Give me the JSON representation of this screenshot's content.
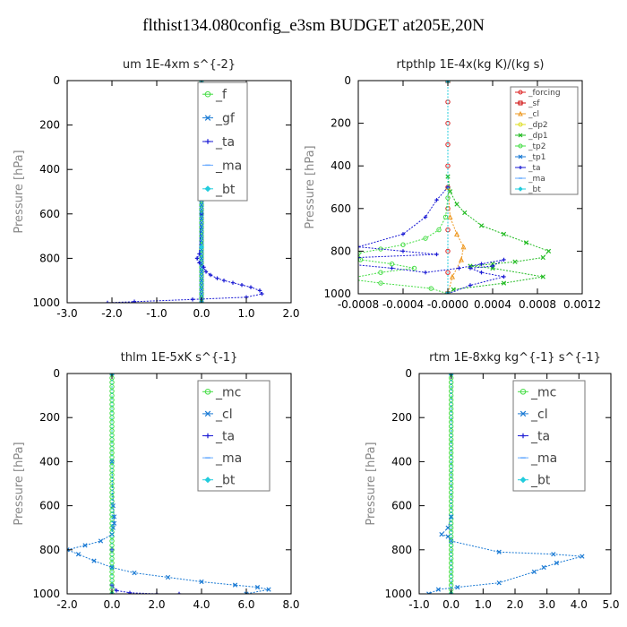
{
  "title": "flthist134.080config_e3sm  BUDGET at205E,20N",
  "chart_data": [
    {
      "type": "line",
      "title": "um  1E-4xm s^{-2}",
      "ylabel": "Pressure [hPa]",
      "xlim": [
        -3.0,
        2.0
      ],
      "ylim": [
        1000,
        0
      ],
      "xticks": [
        "-3.0",
        "-2.0",
        "-1.0",
        "0.0",
        "1.0",
        "2.0"
      ],
      "yticks": [
        "0",
        "200",
        "400",
        "600",
        "800",
        "1000"
      ],
      "legend_position": "top-right",
      "series": [
        {
          "name": "_f",
          "color": "#44dd44",
          "marker": "circle",
          "x": [
            0,
            0,
            0,
            0,
            0,
            0,
            0,
            0,
            0,
            0,
            0,
            0,
            0,
            0,
            0,
            0,
            0,
            0,
            0,
            0,
            0,
            0,
            0,
            0,
            0,
            0,
            0,
            0,
            0,
            0,
            0,
            0,
            0,
            0,
            0,
            0,
            0,
            0,
            0,
            0,
            0,
            0,
            0,
            0,
            0,
            0,
            0,
            0,
            0,
            0,
            0
          ],
          "y": [
            0,
            20,
            40,
            60,
            80,
            100,
            120,
            140,
            160,
            180,
            200,
            220,
            240,
            260,
            280,
            300,
            320,
            340,
            360,
            380,
            400,
            420,
            440,
            460,
            480,
            500,
            520,
            540,
            560,
            580,
            600,
            620,
            640,
            660,
            680,
            700,
            720,
            740,
            760,
            780,
            800,
            820,
            840,
            860,
            880,
            900,
            920,
            940,
            960,
            980,
            1000
          ]
        },
        {
          "name": "_gf",
          "color": "#1a7ad4",
          "marker": "x",
          "x": [
            0,
            0,
            0,
            0,
            0,
            0,
            0,
            0,
            0,
            0,
            0,
            0,
            0,
            0,
            0,
            0,
            0,
            0,
            0,
            0,
            0,
            0,
            0,
            0,
            0,
            0,
            0,
            0,
            0,
            0,
            0,
            0,
            0,
            0,
            0,
            0,
            0,
            0,
            0,
            0,
            0,
            0,
            0,
            0,
            0,
            0,
            0,
            0,
            0,
            0,
            0
          ],
          "y": [
            0,
            20,
            40,
            60,
            80,
            100,
            120,
            140,
            160,
            180,
            200,
            220,
            240,
            260,
            280,
            300,
            320,
            340,
            360,
            380,
            400,
            420,
            440,
            460,
            480,
            500,
            520,
            540,
            560,
            580,
            600,
            620,
            640,
            660,
            680,
            700,
            720,
            740,
            760,
            780,
            800,
            820,
            840,
            860,
            880,
            900,
            920,
            940,
            960,
            980,
            1000
          ]
        },
        {
          "name": "_ta",
          "color": "#1a1ad4",
          "marker": "plus",
          "x": [
            0,
            0,
            0,
            -0.05,
            -0.1,
            -0.05,
            0.05,
            0.1,
            0.2,
            0.35,
            0.5,
            0.7,
            0.9,
            1.1,
            1.3,
            1.35,
            1.0,
            -0.2,
            -1.5,
            -2.1
          ],
          "y": [
            0,
            200,
            600,
            780,
            800,
            820,
            840,
            860,
            875,
            890,
            900,
            910,
            920,
            930,
            945,
            960,
            975,
            985,
            995,
            1000
          ]
        },
        {
          "name": "_ma",
          "color": "#66aaff",
          "marker": "dash",
          "x": [
            0,
            0
          ],
          "y": [
            0,
            1000
          ]
        },
        {
          "name": "_bt",
          "color": "#22ccdd",
          "marker": "diamond",
          "x": [
            0,
            0,
            0,
            0,
            0
          ],
          "y": [
            0,
            250,
            500,
            750,
            1000
          ]
        }
      ]
    },
    {
      "type": "line",
      "title": "rtpthlp  1E-4x(kg K)/(kg s)",
      "ylabel": "Pressure [hPa]",
      "xlim": [
        -0.0008,
        0.0012
      ],
      "ylim": [
        1000,
        0
      ],
      "xticks": [
        "-0.0008",
        "-0.0004",
        "-0.0000",
        "0.0004",
        "0.0008",
        "0.0012"
      ],
      "yticks": [
        "0",
        "200",
        "400",
        "600",
        "800",
        "1000"
      ],
      "legend_position": "top-right",
      "series": [
        {
          "name": "_forcing",
          "color": "#dd2222",
          "marker": "circle",
          "x": [
            0,
            0,
            0,
            0,
            0,
            0,
            0,
            0,
            0,
            0,
            0
          ],
          "y": [
            0,
            100,
            200,
            300,
            400,
            500,
            600,
            700,
            800,
            900,
            1000
          ]
        },
        {
          "name": "_sf",
          "color": "#cc0000",
          "marker": "square",
          "x": [
            0,
            0
          ],
          "y": [
            0,
            1000
          ]
        },
        {
          "name": "_cl",
          "color": "#ee9922",
          "marker": "triangle",
          "x": [
            0,
            2e-05,
            8e-05,
            0.00014,
            0.00012,
            4e-05,
            0
          ],
          "y": [
            500,
            640,
            720,
            780,
            840,
            920,
            1000
          ]
        },
        {
          "name": "_dp2",
          "color": "#dddd22",
          "marker": "circle",
          "x": [
            0,
            0
          ],
          "y": [
            0,
            1000
          ]
        },
        {
          "name": "_dp1",
          "color": "#22bb22",
          "marker": "x",
          "x": [
            0,
            0,
            2e-05,
            8e-05,
            0.00015,
            0.0003,
            0.0005,
            0.0007,
            0.0009,
            0.00085,
            0.0006,
            0.0004,
            0.0002,
            0.0004,
            0.00085,
            0.0005,
            5e-05,
            0
          ],
          "y": [
            0,
            450,
            520,
            580,
            620,
            680,
            720,
            760,
            800,
            830,
            850,
            860,
            870,
            880,
            920,
            950,
            980,
            1000
          ]
        },
        {
          "name": "_tp2",
          "color": "#44dd44",
          "marker": "circle",
          "x": [
            0,
            0,
            -2e-05,
            -8e-05,
            -0.0002,
            -0.0004,
            -0.0006,
            -0.0008,
            -0.00078,
            -0.0005,
            -0.0003,
            -0.0006,
            -0.0009,
            -0.0006,
            -0.00015,
            0
          ],
          "y": [
            0,
            550,
            640,
            700,
            740,
            770,
            790,
            810,
            840,
            860,
            880,
            900,
            930,
            950,
            975,
            1000
          ]
        },
        {
          "name": "_tp1",
          "color": "#1a7ad4",
          "marker": "x",
          "x": [
            0,
            0
          ],
          "y": [
            0,
            1000
          ]
        },
        {
          "name": "_ta",
          "color": "#1a1ad4",
          "marker": "plus",
          "x": [
            0,
            0,
            -0.0001,
            -0.0002,
            -0.0004,
            -0.0008,
            -0.0004,
            -0.0001,
            -0.0008,
            -0.0009,
            -0.0005,
            -0.0002,
            0.0001,
            0.0003,
            0.0005,
            0.0004,
            0.0002,
            0.0003,
            0.0005,
            0.0002,
            0
          ],
          "y": [
            0,
            500,
            560,
            640,
            720,
            780,
            800,
            815,
            830,
            860,
            880,
            900,
            880,
            860,
            840,
            870,
            880,
            900,
            920,
            960,
            1000
          ]
        },
        {
          "name": "_ma",
          "color": "#66aaff",
          "marker": "dash",
          "x": [
            0,
            0
          ],
          "y": [
            0,
            1000
          ]
        },
        {
          "name": "_bt",
          "color": "#22ccdd",
          "marker": "diamond",
          "x": [
            0,
            0
          ],
          "y": [
            0,
            1000
          ]
        }
      ]
    },
    {
      "type": "line",
      "title": "thlm  1E-5xK s^{-1}",
      "ylabel": "Pressure [hPa]",
      "xlim": [
        -2.0,
        8.0
      ],
      "ylim": [
        1000,
        0
      ],
      "xticks": [
        "-2.0",
        "0.0",
        "2.0",
        "4.0",
        "6.0",
        "8.0"
      ],
      "yticks": [
        "0",
        "200",
        "400",
        "600",
        "800",
        "1000"
      ],
      "legend_position": "top-right",
      "series": [
        {
          "name": "_mc",
          "color": "#44dd44",
          "marker": "circle",
          "x": [
            0,
            0,
            0,
            0,
            0,
            0,
            0,
            0,
            0,
            0,
            0,
            0,
            0,
            0,
            0,
            0,
            0,
            0,
            0,
            0,
            0,
            0,
            0,
            0,
            0,
            0,
            0,
            0,
            0,
            0,
            0,
            0,
            0,
            0,
            0,
            0,
            0,
            0,
            0,
            0,
            0,
            0,
            0,
            0,
            0,
            0,
            0,
            0,
            0,
            0,
            0
          ],
          "y": [
            0,
            20,
            40,
            60,
            80,
            100,
            120,
            140,
            160,
            180,
            200,
            220,
            240,
            260,
            280,
            300,
            320,
            340,
            360,
            380,
            400,
            420,
            440,
            460,
            480,
            500,
            520,
            540,
            560,
            580,
            600,
            620,
            640,
            660,
            680,
            700,
            720,
            740,
            760,
            780,
            800,
            820,
            840,
            860,
            880,
            900,
            920,
            940,
            960,
            980,
            1000
          ]
        },
        {
          "name": "_cl",
          "color": "#1a7ad4",
          "marker": "x",
          "x": [
            0,
            0,
            0.05,
            0.1,
            0.1,
            0.05,
            0,
            -0.5,
            -1.2,
            -2.0,
            -1.5,
            -0.8,
            0,
            1.0,
            2.5,
            4.0,
            5.5,
            6.5,
            7.0,
            6.0
          ],
          "y": [
            0,
            400,
            600,
            650,
            680,
            700,
            730,
            760,
            780,
            800,
            820,
            850,
            880,
            905,
            925,
            945,
            960,
            970,
            980,
            1000
          ]
        },
        {
          "name": "_ta",
          "color": "#1a1ad4",
          "marker": "plus",
          "x": [
            0,
            0,
            0,
            0.2,
            0.8,
            2.0,
            3.0
          ],
          "y": [
            0,
            800,
            960,
            985,
            995,
            1000,
            1000
          ]
        },
        {
          "name": "_ma",
          "color": "#66aaff",
          "marker": "dash",
          "x": [
            0,
            0
          ],
          "y": [
            0,
            1000
          ]
        },
        {
          "name": "_bt",
          "color": "#22ccdd",
          "marker": "diamond",
          "x": [
            0,
            0
          ],
          "y": [
            0,
            1000
          ]
        }
      ]
    },
    {
      "type": "line",
      "title": "rtm  1E-8xkg kg^{-1} s^{-1}",
      "ylabel": "Pressure [hPa]",
      "xlim": [
        -1.0,
        5.0
      ],
      "ylim": [
        1000,
        0
      ],
      "xticks": [
        "-1.0",
        "0.0",
        "1.0",
        "2.0",
        "3.0",
        "4.0",
        "5.0"
      ],
      "yticks": [
        "0",
        "200",
        "400",
        "600",
        "800",
        "1000"
      ],
      "legend_position": "top-right",
      "series": [
        {
          "name": "_mc",
          "color": "#44dd44",
          "marker": "circle",
          "x": [
            0,
            0,
            0,
            0,
            0,
            0,
            0,
            0,
            0,
            0,
            0,
            0,
            0,
            0,
            0,
            0,
            0,
            0,
            0,
            0,
            0,
            0,
            0,
            0,
            0,
            0,
            0,
            0,
            0,
            0,
            0,
            0,
            0,
            0,
            0,
            0,
            0,
            0,
            0,
            0,
            0,
            0,
            0,
            0,
            0,
            0,
            0,
            0,
            0,
            0,
            0
          ],
          "y": [
            0,
            20,
            40,
            60,
            80,
            100,
            120,
            140,
            160,
            180,
            200,
            220,
            240,
            260,
            280,
            300,
            320,
            340,
            360,
            380,
            400,
            420,
            440,
            460,
            480,
            500,
            520,
            540,
            560,
            580,
            600,
            620,
            640,
            660,
            680,
            700,
            720,
            740,
            760,
            780,
            800,
            820,
            840,
            860,
            880,
            900,
            920,
            940,
            960,
            980,
            1000
          ]
        },
        {
          "name": "_cl",
          "color": "#1a7ad4",
          "marker": "x",
          "x": [
            0,
            0,
            -0.1,
            -0.3,
            -0.1,
            0,
            1.5,
            3.2,
            4.1,
            3.3,
            2.9,
            2.6,
            1.5,
            0.2,
            -0.4,
            -0.7
          ],
          "y": [
            0,
            650,
            700,
            730,
            740,
            760,
            810,
            820,
            830,
            860,
            880,
            900,
            950,
            970,
            980,
            1000
          ]
        },
        {
          "name": "_ta",
          "color": "#1a1ad4",
          "marker": "plus",
          "x": [
            0,
            0
          ],
          "y": [
            0,
            1000
          ]
        },
        {
          "name": "_ma",
          "color": "#66aaff",
          "marker": "dash",
          "x": [
            0,
            0
          ],
          "y": [
            0,
            1000
          ]
        },
        {
          "name": "_bt",
          "color": "#22ccdd",
          "marker": "diamond",
          "x": [
            0,
            0
          ],
          "y": [
            0,
            1000
          ]
        }
      ]
    }
  ]
}
